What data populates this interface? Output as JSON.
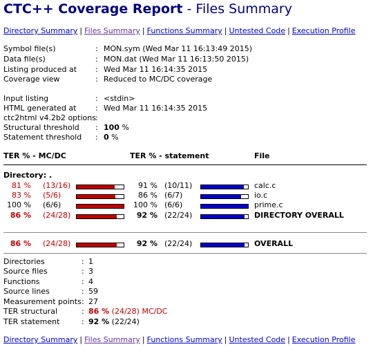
{
  "title": {
    "bold": "CTC++ Coverage Report",
    "rest": " - Files Summary"
  },
  "nav": [
    "Directory Summary",
    "Files Summary",
    "Functions Summary",
    "Untested Code",
    "Execution Profile"
  ],
  "nav_sep": "|",
  "meta": [
    {
      "label": "Symbol file(s)",
      "value": "MON.sym (Wed Mar 11 16:13:49 2015)"
    },
    {
      "label": "Data file(s)",
      "value": "MON.dat (Wed Mar 11 16:13:50 2015)"
    },
    {
      "label": "Listing produced at",
      "value": "Wed Mar 11 16:14:35 2015"
    },
    {
      "label": "Coverage view",
      "value": "Reduced to MC/DC coverage"
    }
  ],
  "meta2": [
    {
      "label": "Input listing",
      "value": "<stdin>"
    },
    {
      "label": "HTML generated at",
      "value": "Wed Mar 11 16:14:35 2015"
    },
    {
      "label": "ctc2html v4.2b2 options",
      "value": ""
    },
    {
      "label": "Structural threshold",
      "value": "100",
      "unit": " %"
    },
    {
      "label": "Statement threshold",
      "value": "0",
      "unit": " %"
    }
  ],
  "colon": ":",
  "table": {
    "headers": {
      "ter_mcdc": "TER % - MC/DC",
      "ter_stmt": "TER % - statement",
      "file": "File"
    },
    "directory_label": "Directory: .",
    "rows": [
      {
        "mcdc_pct": "81 %",
        "mcdc_cnt": "(13/16)",
        "mcdc_frac": 0.81,
        "stmt_pct": "91 %",
        "stmt_cnt": "(10/11)",
        "stmt_frac": 0.91,
        "file": "calc.c",
        "red": true,
        "bold": false
      },
      {
        "mcdc_pct": "83 %",
        "mcdc_cnt": "(5/6)",
        "mcdc_frac": 0.83,
        "stmt_pct": "86 %",
        "stmt_cnt": "(6/7)",
        "stmt_frac": 0.86,
        "file": "io.c",
        "red": true,
        "bold": false
      },
      {
        "mcdc_pct": "100 %",
        "mcdc_cnt": "(6/6)",
        "mcdc_frac": 1.0,
        "stmt_pct": "100 %",
        "stmt_cnt": "(6/6)",
        "stmt_frac": 1.0,
        "file": "prime.c",
        "red": false,
        "bold": false
      },
      {
        "mcdc_pct": "86 %",
        "mcdc_cnt": "(24/28)",
        "mcdc_frac": 0.86,
        "stmt_pct": "92 %",
        "stmt_cnt": "(22/24)",
        "stmt_frac": 0.92,
        "file": "DIRECTORY OVERALL",
        "red": true,
        "bold": true
      }
    ],
    "overall": {
      "mcdc_pct": "86 %",
      "mcdc_cnt": "(24/28)",
      "mcdc_frac": 0.86,
      "stmt_pct": "92 %",
      "stmt_cnt": "(22/24)",
      "stmt_frac": 0.92,
      "file": "OVERALL"
    }
  },
  "stats": [
    {
      "label": "Directories",
      "value": "1"
    },
    {
      "label": "Source files",
      "value": "3"
    },
    {
      "label": "Functions",
      "value": "4"
    },
    {
      "label": "Source lines",
      "value": "59"
    },
    {
      "label": "Measurement points",
      "value": "27"
    }
  ],
  "ter_structural": {
    "label": "TER structural",
    "pct": "86 %",
    "rest": "(24/28) MC/DC"
  },
  "ter_statement": {
    "label": "TER statement",
    "pct": "92 %",
    "rest": "(22/24)"
  },
  "colors": {
    "title": "#000080",
    "link": "#0000cc",
    "visited": "#663399",
    "red": "#c00000",
    "bar_blue": "#0000cc",
    "bar_red": "#c00000"
  }
}
